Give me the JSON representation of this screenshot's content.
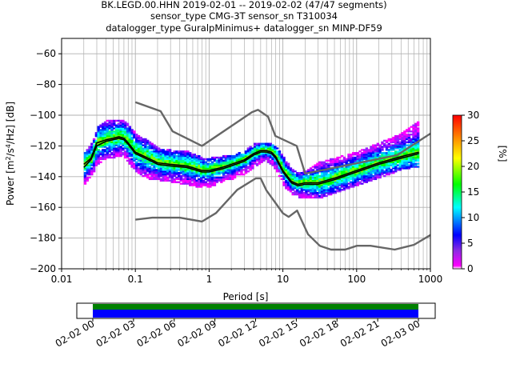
{
  "chart_data": {
    "type": "heatmap",
    "title_lines": [
      "BK.LEGD.00.HHN   2019-02-01 -- 2019-02-02  (47/47 segments)",
      "sensor_type CMG-3T sensor_sn T310034",
      "datalogger_type GuralpMinimus+ datalogger_sn MINP-DF59"
    ],
    "xlabel": "Period [s]",
    "ylabel_parts": [
      "Power [m",
      "2",
      "/s",
      "4",
      "/Hz] [dB]"
    ],
    "x_scale": "log",
    "xlim": [
      0.01,
      1000
    ],
    "ylim": [
      -200,
      -50
    ],
    "x_ticks": [
      {
        "value": 0.01,
        "label": "0.01"
      },
      {
        "value": 0.1,
        "label": "0.1"
      },
      {
        "value": 1,
        "label": "1"
      },
      {
        "value": 10,
        "label": "10"
      },
      {
        "value": 100,
        "label": "100"
      },
      {
        "value": 1000,
        "label": "1000"
      }
    ],
    "y_ticks": [
      {
        "value": -60,
        "label": "−60"
      },
      {
        "value": -80,
        "label": "−80"
      },
      {
        "value": -100,
        "label": "−100"
      },
      {
        "value": -120,
        "label": "−120"
      },
      {
        "value": -140,
        "label": "−140"
      },
      {
        "value": -160,
        "label": "−160"
      },
      {
        "value": -180,
        "label": "−180"
      },
      {
        "value": -200,
        "label": "−200"
      }
    ],
    "grid": true,
    "colorbar": {
      "label": "[%]",
      "range": [
        0,
        30
      ],
      "colormap": "pqlx",
      "ticks": [
        {
          "value": 0,
          "label": "0"
        },
        {
          "value": 5,
          "label": "5"
        },
        {
          "value": 10,
          "label": "10"
        },
        {
          "value": 15,
          "label": "15"
        },
        {
          "value": 20,
          "label": "20"
        },
        {
          "value": 25,
          "label": "25"
        },
        {
          "value": 30,
          "label": "30"
        }
      ]
    },
    "series": [
      {
        "role": "high-noise-model",
        "color": "#666666",
        "x": [
          0.1,
          0.22,
          0.32,
          0.8,
          3.8,
          4.6,
          6.3,
          7.9,
          15.4,
          20,
          354.8,
          1000
        ],
        "y": [
          -91.5,
          -97.4,
          -110.5,
          -120,
          -98,
          -96.5,
          -101,
          -113.5,
          -120,
          -138,
          -126,
          -112
        ]
      },
      {
        "role": "low-noise-model",
        "color": "#666666",
        "x": [
          0.1,
          0.17,
          0.4,
          0.8,
          1.24,
          2.4,
          4.3,
          5,
          6,
          10,
          12,
          15.6,
          21.9,
          31.6,
          45,
          70,
          101,
          154,
          328,
          600,
          1000
        ],
        "y": [
          -168,
          -166.7,
          -166.7,
          -169.2,
          -163.7,
          -148.6,
          -141.1,
          -141.1,
          -149,
          -163.8,
          -166.2,
          -162.1,
          -177.5,
          -185,
          -187.5,
          -187.5,
          -185,
          -185,
          -187.5,
          -184.4,
          -178
        ]
      },
      {
        "role": "mode",
        "color": "#000000",
        "x": [
          0.02,
          0.025,
          0.03,
          0.04,
          0.05,
          0.06,
          0.07,
          0.08,
          0.1,
          0.15,
          0.2,
          0.3,
          0.5,
          0.8,
          1,
          1.5,
          2,
          3,
          4,
          5,
          6,
          7,
          8,
          10,
          13,
          16,
          20,
          30,
          50,
          100,
          200,
          400,
          700
        ],
        "y": [
          -132,
          -128,
          -118,
          -116,
          -115,
          -114,
          -115,
          -118,
          -124,
          -128,
          -131,
          -132,
          -133,
          -136,
          -136,
          -134,
          -132,
          -129,
          -125,
          -123,
          -123,
          -124,
          -127,
          -136,
          -143,
          -145,
          -144,
          -144,
          -141,
          -136,
          -131,
          -127,
          -124
        ]
      },
      {
        "role": "mean",
        "color": "#000000",
        "x": [
          0.02,
          0.025,
          0.03,
          0.04,
          0.05,
          0.06,
          0.07,
          0.08,
          0.1,
          0.15,
          0.2,
          0.3,
          0.5,
          0.8,
          1,
          1.5,
          2,
          3,
          4,
          5,
          6,
          7,
          8,
          10,
          13,
          16,
          20,
          30,
          50,
          100,
          200,
          400,
          700
        ],
        "y": [
          -134,
          -129,
          -120,
          -117,
          -116,
          -115,
          -116,
          -119,
          -125,
          -129,
          -132,
          -133,
          -134,
          -137,
          -137,
          -135,
          -133,
          -130,
          -126,
          -124,
          -124,
          -125,
          -128,
          -137,
          -144,
          -146,
          -145,
          -145,
          -142,
          -137,
          -132,
          -128,
          -125
        ]
      }
    ],
    "density": [
      {
        "x": [
          0.02,
          0.025,
          0.03,
          0.04,
          0.05,
          0.06,
          0.07,
          0.08,
          0.1,
          0.15,
          0.2,
          0.3,
          0.5,
          0.8,
          1,
          1.5,
          2,
          3,
          4,
          5,
          6,
          7,
          8,
          10,
          13,
          16,
          20,
          30,
          50,
          100,
          200,
          400,
          700
        ],
        "y_low": [
          -145,
          -138,
          -132,
          -128,
          -127,
          -126,
          -127,
          -131,
          -137,
          -141,
          -142,
          -143,
          -145,
          -147,
          -146,
          -143,
          -141,
          -138,
          -133,
          -130,
          -130,
          -132,
          -136,
          -146,
          -151,
          -153,
          -154,
          -154,
          -150,
          -145,
          -140,
          -135,
          -133
        ],
        "y_high": [
          -124,
          -118,
          -108,
          -104,
          -103,
          -103,
          -104,
          -107,
          -113,
          -117,
          -122,
          -123,
          -124,
          -128,
          -128,
          -127,
          -126,
          -123,
          -119,
          -118,
          -118,
          -119,
          -121,
          -128,
          -135,
          -138,
          -136,
          -131,
          -128,
          -124,
          -118,
          -112,
          -104
        ]
      }
    ],
    "time_strip": {
      "ticks": [
        "02-02 00",
        "02-02 03",
        "02-02 06",
        "02-02 09",
        "02-02 12",
        "02-02 15",
        "02-02 18",
        "02-02 21",
        "02-03 00"
      ],
      "coverage_hours": [
        0,
        24
      ],
      "colors": {
        "top": "#008000",
        "bottom": "#0000ff"
      }
    }
  }
}
